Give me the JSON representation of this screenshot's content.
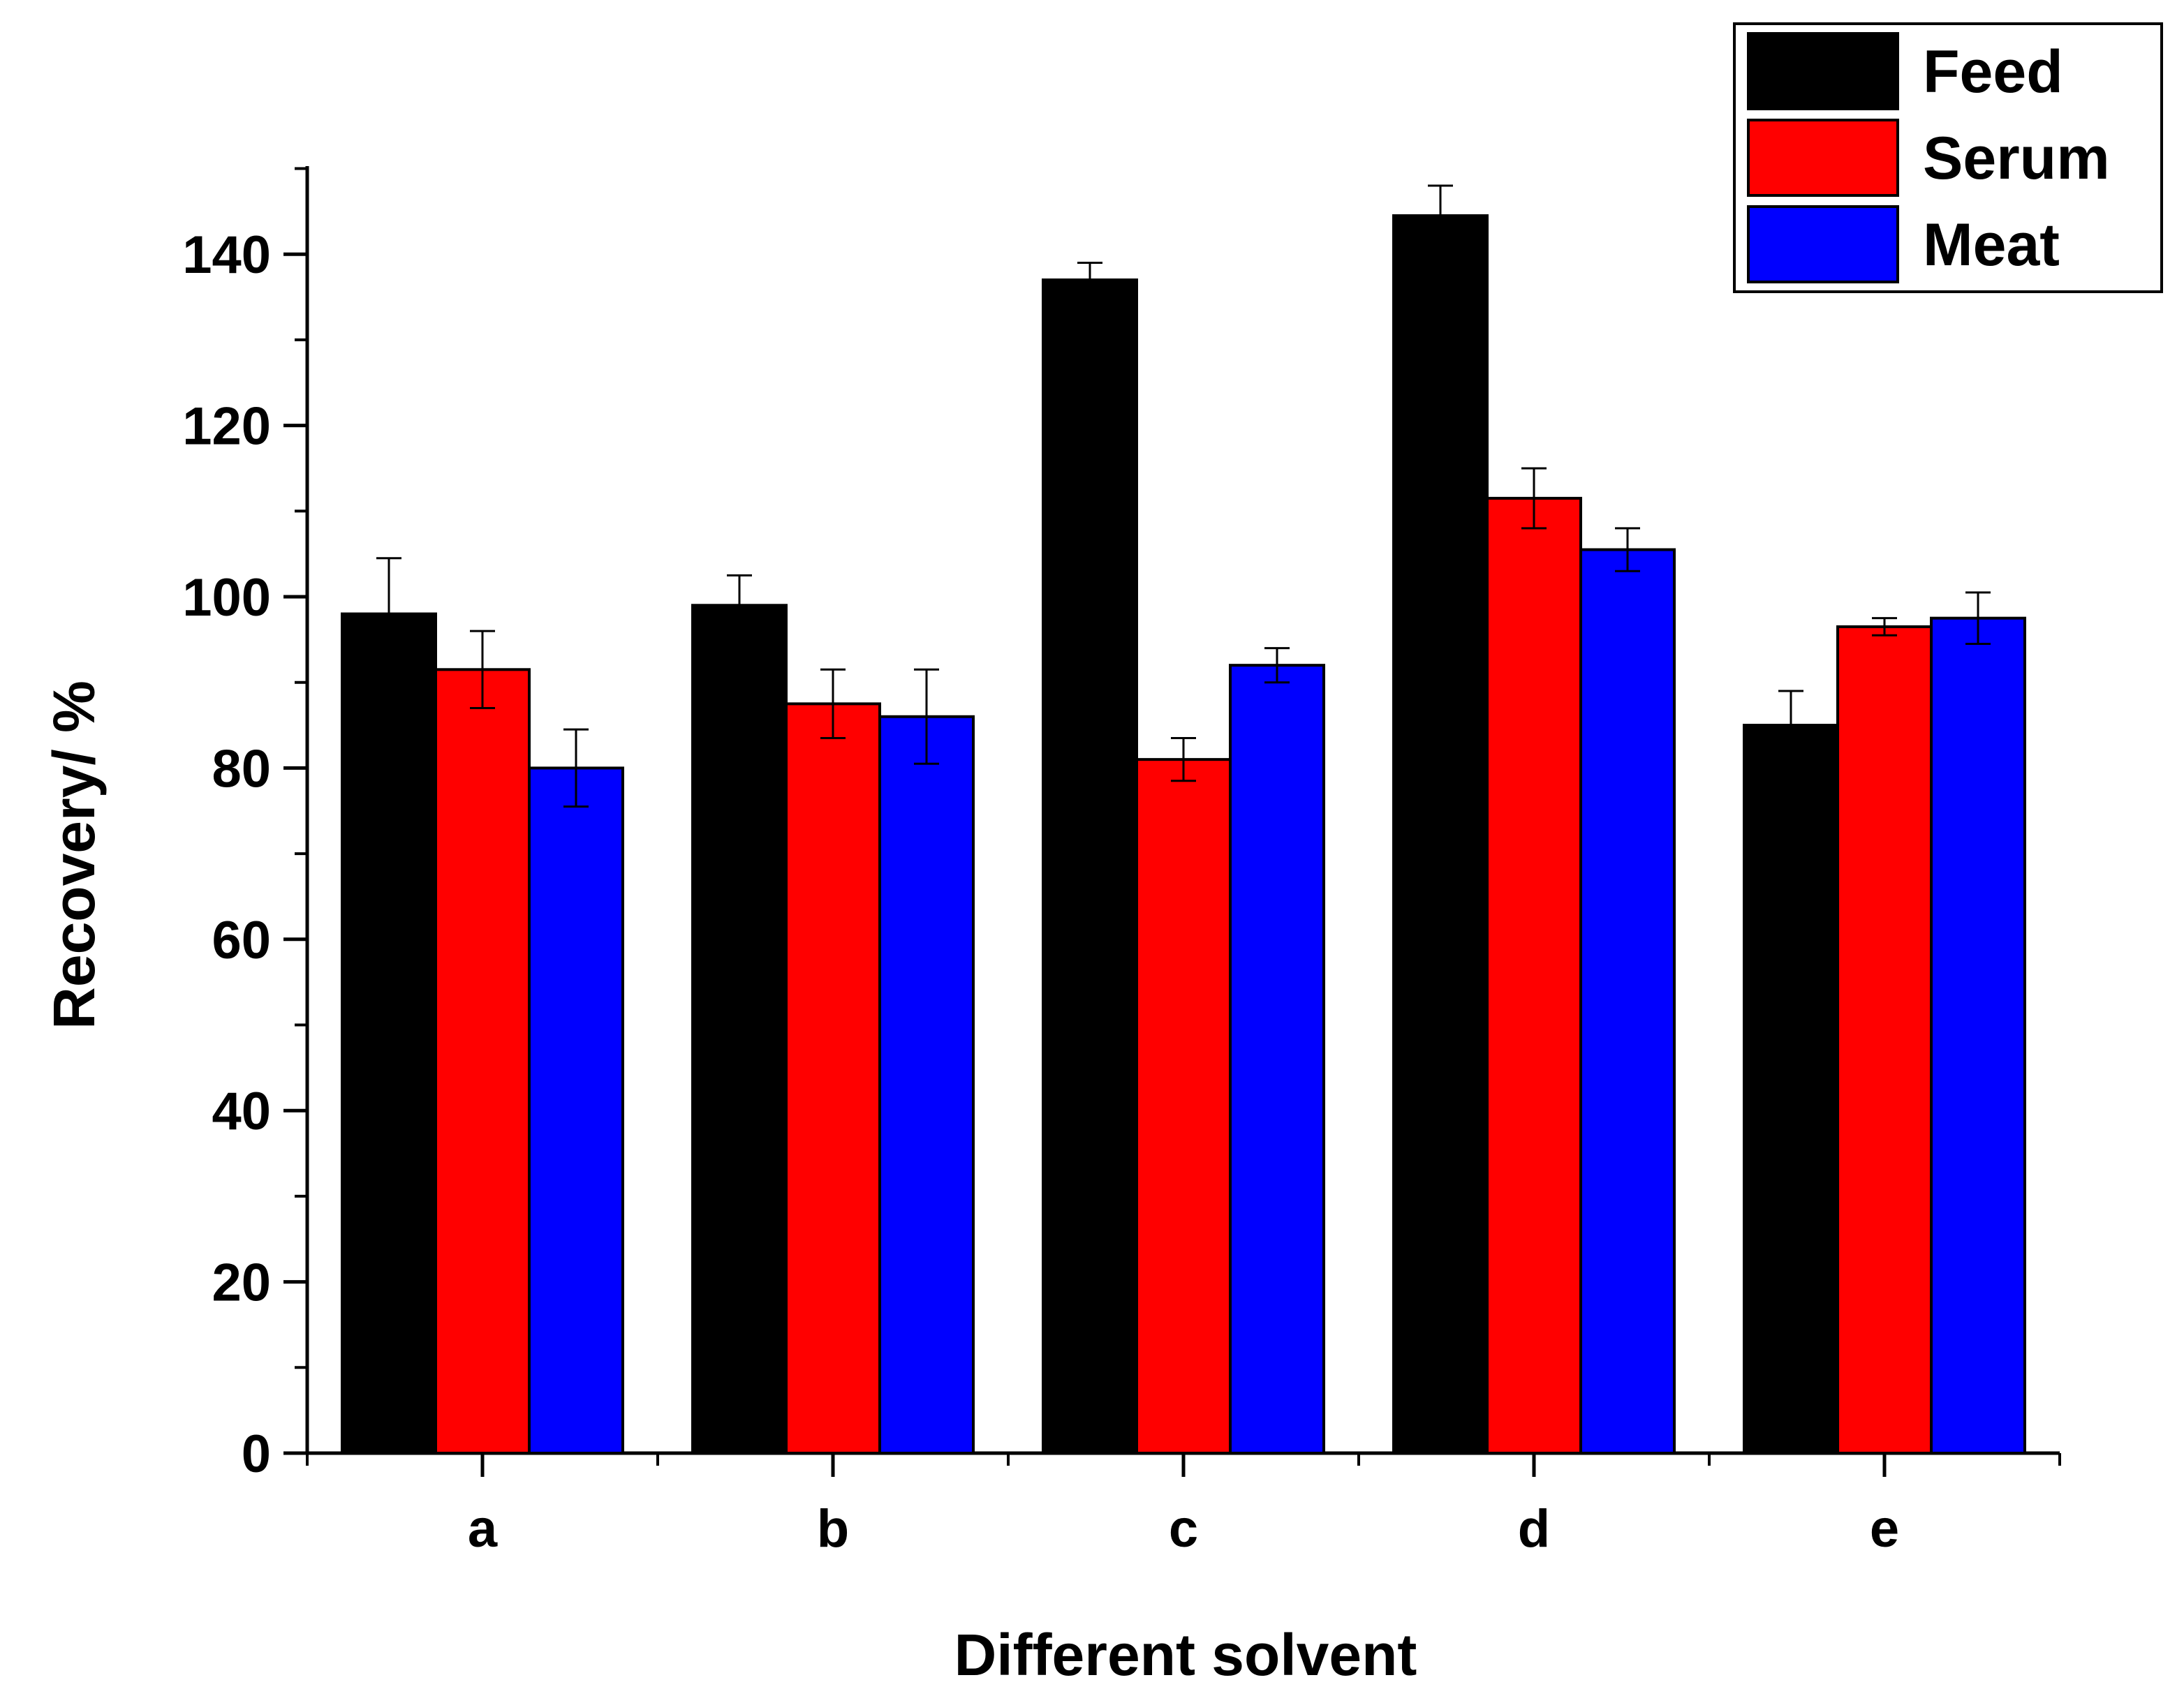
{
  "chart_data": {
    "type": "bar",
    "title": "",
    "xlabel": "Different solvent",
    "ylabel": "Recovery/ %",
    "categories": [
      "a",
      "b",
      "c",
      "d",
      "e"
    ],
    "ylim": [
      0,
      150
    ],
    "yticks": [
      0,
      20,
      40,
      60,
      80,
      100,
      120,
      140
    ],
    "ytick_labels": [
      "0",
      "20",
      "40",
      "60",
      "80",
      "100",
      "120",
      "140"
    ],
    "grid": false,
    "legend_position": "top-right",
    "error_bars": true,
    "series": [
      {
        "name": "Feed",
        "color": "#000000",
        "values": [
          98,
          99,
          137,
          144.5,
          85
        ],
        "errors": [
          6.5,
          3.5,
          2,
          3.5,
          4
        ]
      },
      {
        "name": "Serum",
        "color": "#ff0000",
        "values": [
          91.5,
          87.5,
          81,
          111.5,
          96.5
        ],
        "errors": [
          4.5,
          4,
          2.5,
          3.5,
          1
        ]
      },
      {
        "name": "Meat",
        "color": "#0000ff",
        "values": [
          80,
          86,
          92,
          105.5,
          97.5
        ],
        "errors": [
          4.5,
          5.5,
          2,
          2.5,
          3
        ]
      }
    ]
  }
}
